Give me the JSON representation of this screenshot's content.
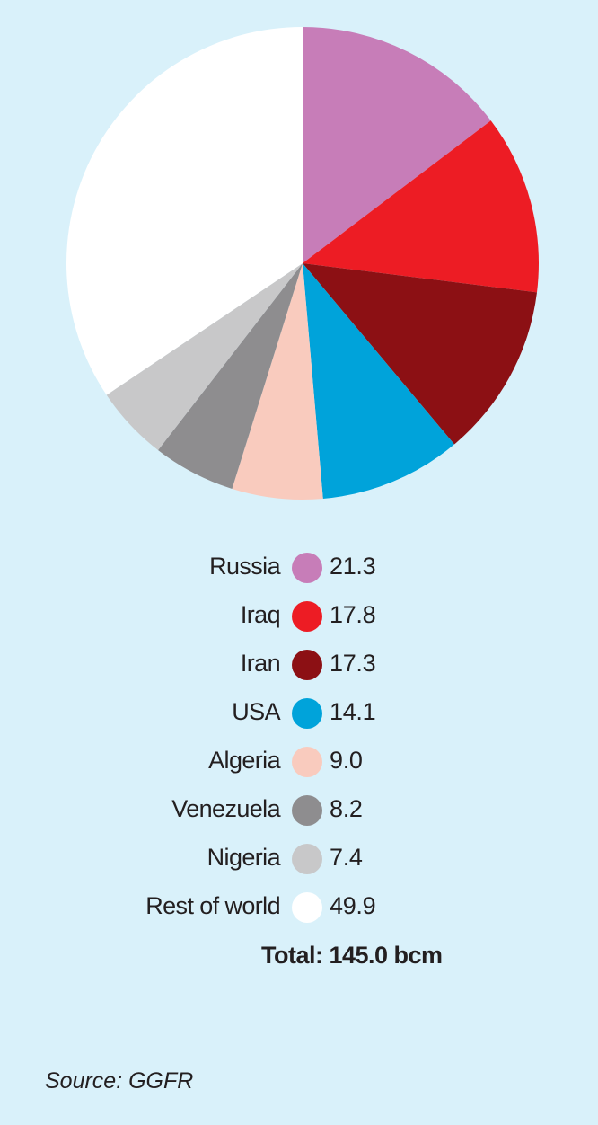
{
  "chart_data": {
    "type": "pie",
    "title": "",
    "unit": "bcm",
    "start_angle_deg": 0,
    "direction": "clockwise",
    "slices": [
      {
        "label": "Russia",
        "value": 21.3,
        "display": "21.3",
        "color": "#c77db8"
      },
      {
        "label": "Iraq",
        "value": 17.8,
        "display": "17.8",
        "color": "#ed1c24"
      },
      {
        "label": "Iran",
        "value": 17.3,
        "display": "17.3",
        "color": "#8c1014"
      },
      {
        "label": "USA",
        "value": 14.1,
        "display": "14.1",
        "color": "#00a3da"
      },
      {
        "label": "Algeria",
        "value": 9.0,
        "display": "9.0",
        "color": "#f9cbbe"
      },
      {
        "label": "Venezuela",
        "value": 8.2,
        "display": "8.2",
        "color": "#8e8d8f"
      },
      {
        "label": "Nigeria",
        "value": 7.4,
        "display": "7.4",
        "color": "#c8c8c9"
      },
      {
        "label": "Rest of world",
        "value": 49.9,
        "display": "49.9",
        "color": "#ffffff"
      }
    ],
    "total_text": "Total: 145.0 bcm",
    "legend_position": "bottom"
  },
  "source": "Source: GGFR"
}
